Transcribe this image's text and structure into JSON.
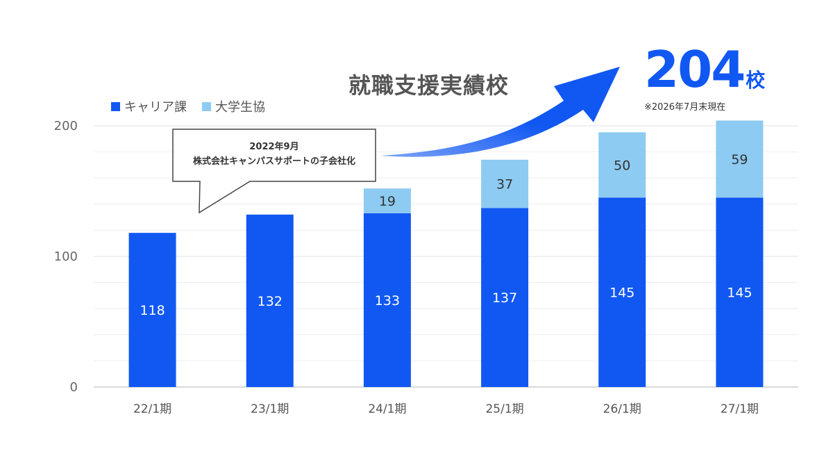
{
  "headline": "就職支援実績校",
  "total": {
    "value": "204",
    "unit": "校",
    "note": "※2026年7月末現在"
  },
  "callout": {
    "line1": "2022年9月",
    "line2": "株式会社キャンパスサポートの子会社化"
  },
  "colors": {
    "career": "#1158F2",
    "coop": "#8DCBF2",
    "axis": "#cccccc",
    "grid": "#eeeeee"
  },
  "chart_data": {
    "type": "bar",
    "stacked": true,
    "categories": [
      "22/1期",
      "23/1期",
      "24/1期",
      "25/1期",
      "26/1期",
      "27/1期"
    ],
    "series": [
      {
        "name": "キャリア課",
        "values": [
          118,
          132,
          133,
          137,
          145,
          145
        ]
      },
      {
        "name": "大学生協",
        "values": [
          0,
          0,
          19,
          37,
          50,
          59
        ]
      }
    ],
    "yticks": [
      0,
      100,
      200
    ],
    "ylim": [
      0,
      200
    ],
    "grid": true,
    "legend": "top-left"
  }
}
